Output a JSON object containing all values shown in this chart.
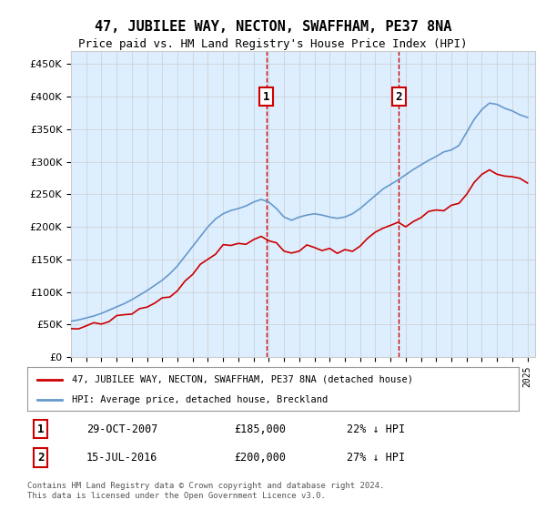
{
  "title": "47, JUBILEE WAY, NECTON, SWAFFHAM, PE37 8NA",
  "subtitle": "Price paid vs. HM Land Registry's House Price Index (HPI)",
  "property_label": "47, JUBILEE WAY, NECTON, SWAFFHAM, PE37 8NA (detached house)",
  "hpi_label": "HPI: Average price, detached house, Breckland",
  "transaction1_label": "1",
  "transaction1_date": "29-OCT-2007",
  "transaction1_price": "£185,000",
  "transaction1_hpi": "22% ↓ HPI",
  "transaction1_year": 2007.83,
  "transaction1_value": 185000,
  "transaction2_label": "2",
  "transaction2_date": "15-JUL-2016",
  "transaction2_price": "£200,000",
  "transaction2_hpi": "27% ↓ HPI",
  "transaction2_year": 2016.54,
  "transaction2_value": 200000,
  "property_color": "#cc0000",
  "hpi_color": "#6699cc",
  "marker_color": "#cc0000",
  "vline_color": "#cc0000",
  "background_color": "#ddeeff",
  "plot_bg": "#ffffff",
  "ylim_min": 0,
  "ylim_max": 470000,
  "xlim_min": 1995,
  "xlim_max": 2025.5,
  "footer": "Contains HM Land Registry data © Crown copyright and database right 2024.\nThis data is licensed under the Open Government Licence v3.0."
}
